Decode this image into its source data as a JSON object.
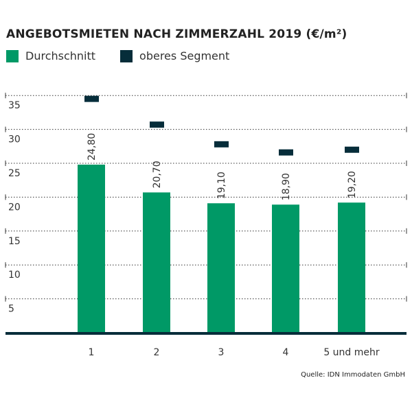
{
  "chart_data": {
    "type": "bar",
    "title": "ANGEBOTSMIETEN NACH ZIMMERZAHL 2019 (€/m²)",
    "categories": [
      "1",
      "2",
      "3",
      "4",
      "5 und mehr"
    ],
    "series": [
      {
        "name": "Durchschnitt",
        "type": "bar",
        "color": "#009966",
        "values": [
          24.8,
          20.7,
          19.1,
          18.9,
          19.2
        ],
        "labels": [
          "24,80",
          "20,70",
          "19,10",
          "18,90",
          "19,20"
        ]
      },
      {
        "name": "oberes Segment",
        "type": "marker",
        "color": "#062d3a",
        "values": [
          34.5,
          30.7,
          27.8,
          26.6,
          27.0
        ]
      }
    ],
    "yticks": [
      5,
      10,
      15,
      20,
      25,
      30,
      35
    ],
    "ylim": [
      0,
      35
    ],
    "grid": true,
    "legend": "top-left",
    "xlabel": "",
    "ylabel": ""
  },
  "source": "Quelle: IDN Immodaten GmbH"
}
